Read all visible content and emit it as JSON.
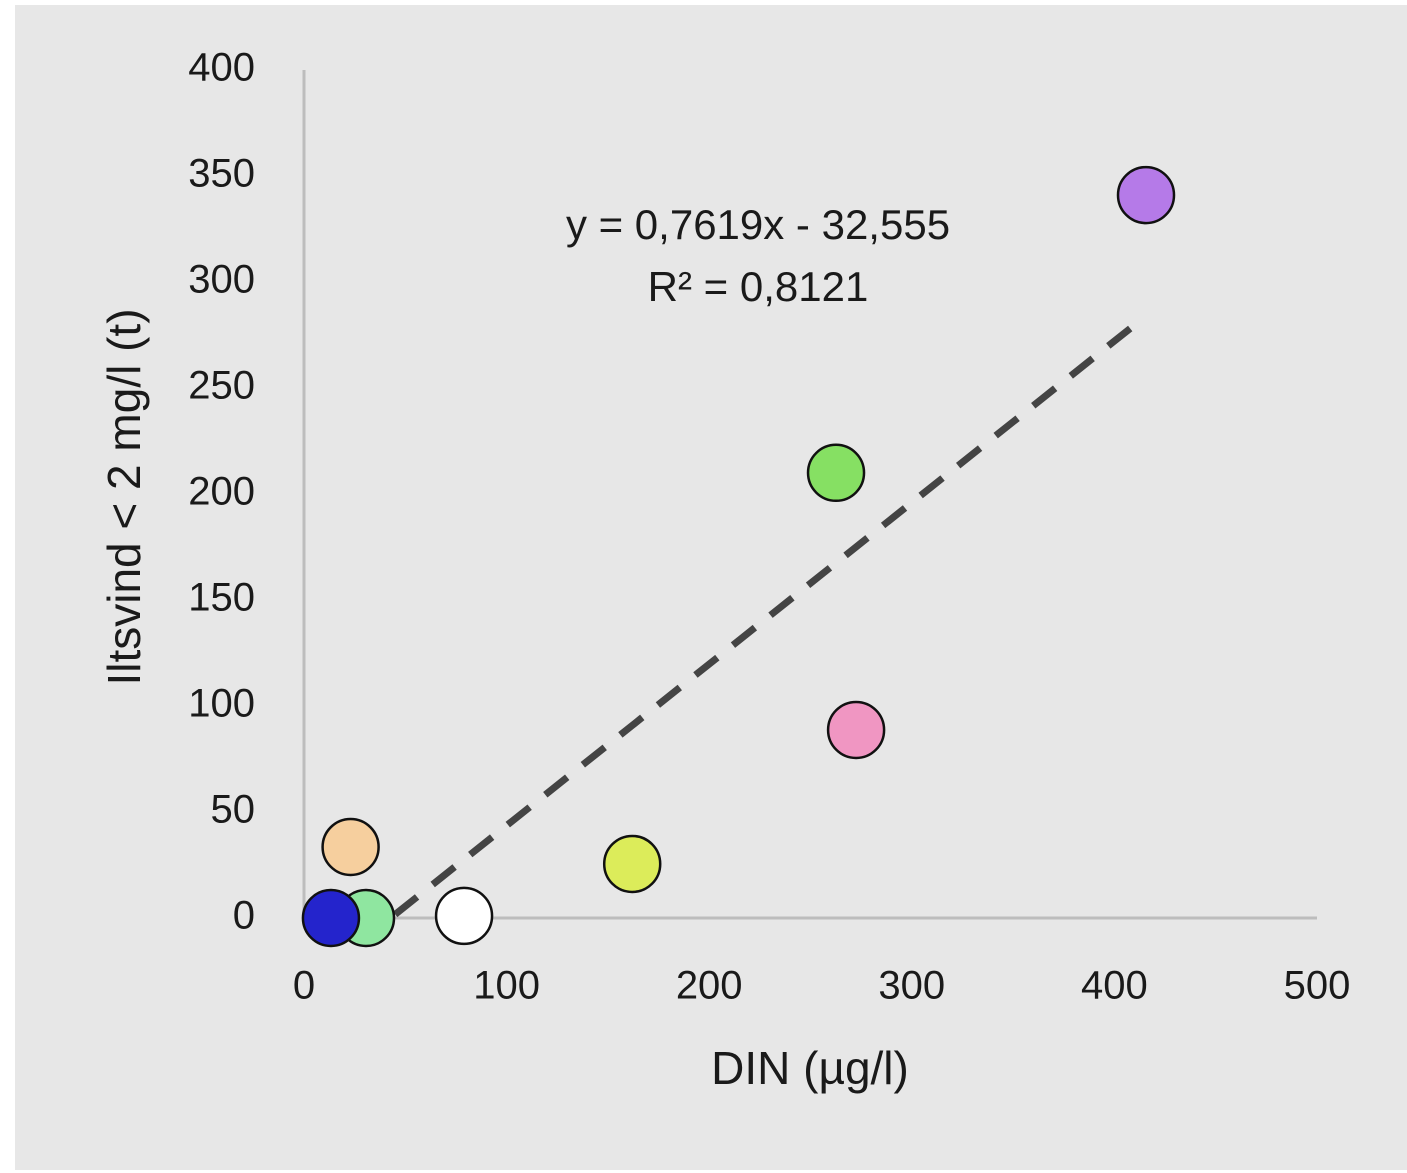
{
  "chart_data": {
    "type": "scatter",
    "x_label": "DIN (µg/l)",
    "y_label": "Iltsvind < 2 mg/l (t)",
    "equation": "y = 0,7619x - 32,555",
    "r_squared": "R² = 0,8121",
    "x": [
      415.6,
      262.6,
      272.5,
      162,
      23,
      30.6,
      13.3,
      79
    ],
    "values": [
      341,
      210,
      88.7,
      25.5,
      33.5,
      0,
      0,
      1
    ],
    "colors": [
      "#b57ae8",
      "#86e063",
      "#f096c2",
      "#dcec5a",
      "#f6cf9e",
      "#8fe6a0",
      "#2424cc",
      "#ffffff"
    ],
    "trendline": {
      "x": [
        45,
        409
      ],
      "values": [
        1.7,
        279
      ],
      "color": "#444444"
    },
    "xlim": [
      0,
      500
    ],
    "xticks": [
      0,
      100,
      200,
      300,
      400,
      500
    ],
    "ylim": [
      0,
      400
    ],
    "yticks": [
      0,
      50,
      100,
      150,
      200,
      250,
      300,
      350,
      400
    ],
    "grid": false
  }
}
